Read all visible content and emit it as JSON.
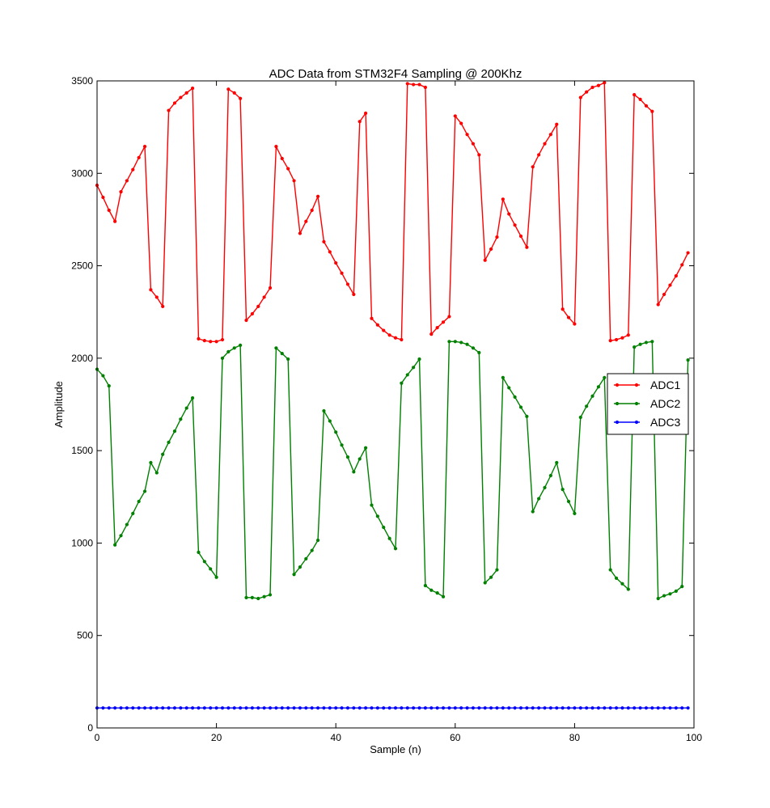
{
  "chart_data": {
    "type": "line",
    "title": "ADC Data from STM32F4 Sampling @ 200Khz",
    "xlabel": "Sample (n)",
    "ylabel": "Amplitude",
    "xlim": [
      0,
      100
    ],
    "ylim": [
      0,
      3500
    ],
    "xticks": [
      0,
      20,
      40,
      60,
      80,
      100
    ],
    "yticks": [
      0,
      500,
      1000,
      1500,
      2000,
      2500,
      3000,
      3500
    ],
    "grid": false,
    "legend_position": "right",
    "series": [
      {
        "name": "ADC1",
        "color": "#ff0000",
        "values": [
          2935,
          2870,
          2800,
          2740,
          2900,
          2960,
          3020,
          3085,
          3145,
          2370,
          2330,
          2280,
          3340,
          3380,
          3410,
          3435,
          3460,
          2105,
          2095,
          2090,
          2090,
          2100,
          3455,
          3435,
          3405,
          2205,
          2240,
          2280,
          2330,
          2380,
          3145,
          3080,
          3025,
          2960,
          2675,
          2740,
          2800,
          2875,
          2630,
          2575,
          2515,
          2460,
          2400,
          2345,
          3280,
          3325,
          2215,
          2180,
          2150,
          2125,
          2110,
          2100,
          3485,
          3480,
          3480,
          3465,
          2130,
          2165,
          2195,
          2225,
          3310,
          3270,
          3210,
          3160,
          3100,
          2530,
          2590,
          2655,
          2860,
          2780,
          2720,
          2660,
          2600,
          3035,
          3100,
          3160,
          3210,
          3265,
          2265,
          2220,
          2185,
          3410,
          3440,
          3465,
          3475,
          3490,
          2095,
          2100,
          2110,
          2125,
          3425,
          3400,
          3365,
          3335,
          2290,
          2345,
          2395,
          2445,
          2505,
          2570
        ]
      },
      {
        "name": "ADC2",
        "color": "#008000",
        "values": [
          1940,
          1905,
          1850,
          990,
          1040,
          1100,
          1160,
          1225,
          1280,
          1435,
          1380,
          1480,
          1545,
          1605,
          1670,
          1730,
          1785,
          950,
          900,
          860,
          815,
          2000,
          2035,
          2055,
          2070,
          705,
          705,
          700,
          710,
          720,
          2055,
          2025,
          1995,
          830,
          870,
          915,
          960,
          1015,
          1715,
          1660,
          1600,
          1530,
          1465,
          1385,
          1455,
          1515,
          1205,
          1145,
          1085,
          1025,
          970,
          1865,
          1910,
          1950,
          1995,
          770,
          745,
          730,
          710,
          2090,
          2090,
          2085,
          2075,
          2055,
          2030,
          785,
          815,
          855,
          1895,
          1840,
          1790,
          1735,
          1685,
          1170,
          1240,
          1300,
          1365,
          1435,
          1290,
          1225,
          1160,
          1680,
          1740,
          1795,
          1845,
          1895,
          855,
          810,
          780,
          750,
          2060,
          2075,
          2085,
          2090,
          700,
          715,
          725,
          740,
          765,
          1990
        ]
      },
      {
        "name": "ADC3",
        "color": "#0000ff",
        "values": [
          108,
          108,
          108,
          108,
          108,
          108,
          108,
          108,
          108,
          108,
          108,
          108,
          108,
          108,
          108,
          108,
          108,
          108,
          108,
          108,
          108,
          108,
          108,
          108,
          108,
          108,
          108,
          108,
          108,
          108,
          108,
          108,
          108,
          108,
          108,
          108,
          108,
          108,
          108,
          108,
          108,
          108,
          108,
          108,
          108,
          108,
          108,
          108,
          108,
          108,
          108,
          108,
          108,
          108,
          108,
          108,
          108,
          108,
          108,
          108,
          108,
          108,
          108,
          108,
          108,
          108,
          108,
          108,
          108,
          108,
          108,
          108,
          108,
          108,
          108,
          108,
          108,
          108,
          108,
          108,
          108,
          108,
          108,
          108,
          108,
          108,
          108,
          108,
          108,
          108,
          108,
          108,
          108,
          108,
          108,
          108,
          108,
          108,
          108,
          108
        ]
      }
    ]
  }
}
